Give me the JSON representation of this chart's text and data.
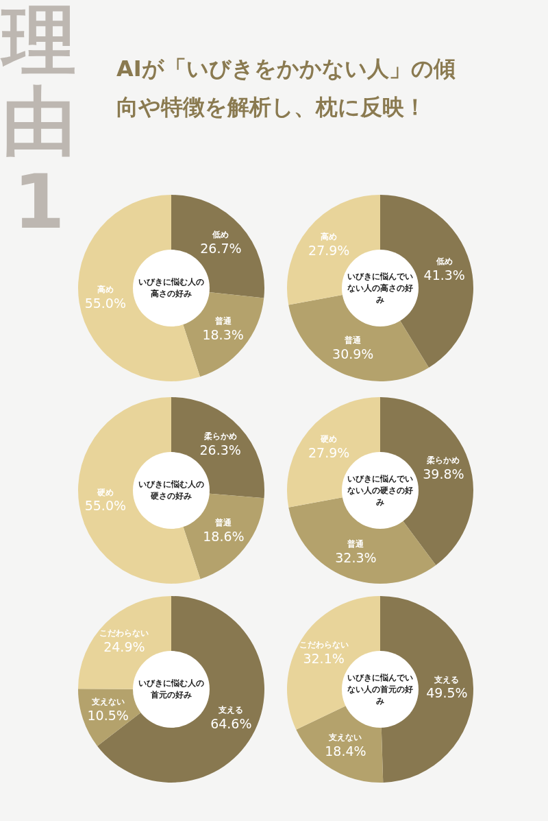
{
  "chart_data": [
    {
      "type": "other",
      "title": "AIが「いびきをかかない人」の傾向や特徴を解析し、枕に反映！",
      "annotations": [
        "理由1"
      ]
    },
    {
      "type": "donut",
      "title": "いびきに悩む人の高さの好み",
      "categories": [
        "低め",
        "普通",
        "高め"
      ],
      "values": [
        26.7,
        18.3,
        55.0
      ],
      "value_labels": [
        "26.7%",
        "18.3%",
        "55.0%"
      ],
      "colors": [
        "#887850",
        "#b4a26c",
        "#e8d49a"
      ]
    },
    {
      "type": "donut",
      "title": "いびきに悩んでいない人の高さの好み",
      "categories": [
        "低め",
        "普通",
        "高め"
      ],
      "values": [
        41.3,
        30.9,
        27.9
      ],
      "value_labels": [
        "41.3%",
        "30.9%",
        "27.9%"
      ],
      "colors": [
        "#887850",
        "#b4a26c",
        "#e8d49a"
      ]
    },
    {
      "type": "donut",
      "title": "いびきに悩む人の硬さの好み",
      "categories": [
        "柔らかめ",
        "普通",
        "硬め"
      ],
      "values": [
        26.3,
        18.6,
        55.0
      ],
      "value_labels": [
        "26.3%",
        "18.6%",
        "55.0%"
      ],
      "colors": [
        "#887850",
        "#b4a26c",
        "#e8d49a"
      ]
    },
    {
      "type": "donut",
      "title": "いびきに悩んでいない人の硬さの好み",
      "categories": [
        "柔らかめ",
        "普通",
        "硬め"
      ],
      "values": [
        39.8,
        32.3,
        27.9
      ],
      "value_labels": [
        "39.8%",
        "32.3%",
        "27.9%"
      ],
      "colors": [
        "#887850",
        "#b4a26c",
        "#e8d49a"
      ]
    },
    {
      "type": "donut",
      "title": "いびきに悩む人の首元の好み",
      "categories": [
        "支える",
        "支えない",
        "こだわらない"
      ],
      "values": [
        64.6,
        10.5,
        24.9
      ],
      "value_labels": [
        "64.6%",
        "10.5%",
        "24.9%"
      ],
      "colors": [
        "#887850",
        "#b4a26c",
        "#e8d49a"
      ]
    },
    {
      "type": "donut",
      "title": "いびきに悩んでいない人の首元の好み",
      "categories": [
        "支える",
        "支えない",
        "こだわらない"
      ],
      "values": [
        49.5,
        18.4,
        32.1
      ],
      "value_labels": [
        "49.5%",
        "18.4%",
        "32.1%"
      ],
      "colors": [
        "#887850",
        "#b4a26c",
        "#e8d49a"
      ]
    }
  ]
}
